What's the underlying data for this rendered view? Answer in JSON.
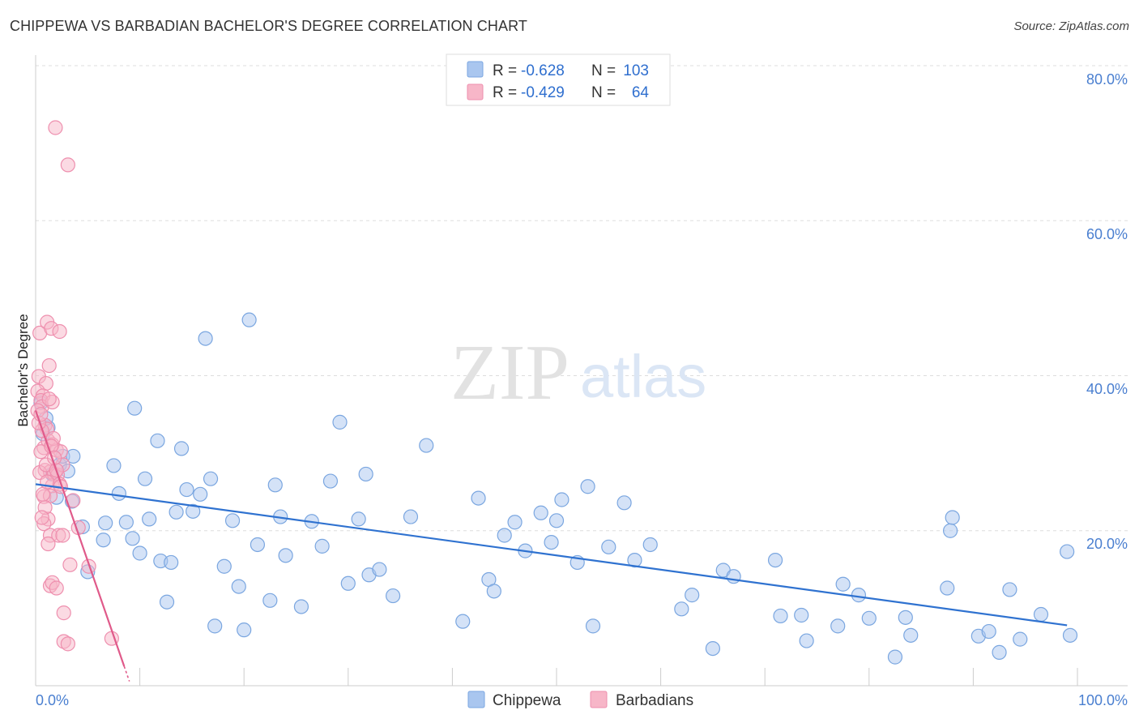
{
  "title": "CHIPPEWA VS BARBADIAN BACHELOR'S DEGREE CORRELATION CHART",
  "source": "Source: ZipAtlas.com",
  "watermark": {
    "zip": "ZIP",
    "atlas": "atlas"
  },
  "colors": {
    "chippewa_fill": "#a9c6ef",
    "chippewa_stroke": "#7aa6e0",
    "chippewa_line": "#2f72d0",
    "barbadian_fill": "#f7b6c8",
    "barbadian_stroke": "#ee8fae",
    "barbadian_line": "#e05a8a",
    "value_blue": "#2f6fcf",
    "grid": "#dddddd"
  },
  "stats": [
    {
      "series": "Chippewa",
      "r_label": "R =",
      "r": "-0.628",
      "n_label": "N =",
      "n": "103"
    },
    {
      "series": "Barbadians",
      "r_label": "R =",
      "r": "-0.429",
      "n_label": "N =",
      "n": "64"
    }
  ],
  "chart_data": {
    "type": "scatter",
    "title": "CHIPPEWA VS BARBADIAN BACHELOR'S DEGREE CORRELATION CHART",
    "xlabel": "",
    "ylabel": "Bachelor's Degree",
    "xlim": [
      0,
      100
    ],
    "ylim": [
      0,
      80
    ],
    "x_tick_labels": [
      "0.0%",
      "100.0%"
    ],
    "y_ticks": [
      20,
      40,
      60,
      80
    ],
    "y_tick_labels": [
      "20.0%",
      "40.0%",
      "60.0%",
      "80.0%"
    ],
    "grid": true,
    "legend": [
      "Chippewa",
      "Barbadians"
    ],
    "series": [
      {
        "name": "Chippewa",
        "trend": {
          "x": [
            0,
            99
          ],
          "y": [
            26.0,
            7.8
          ]
        },
        "points": [
          [
            0.5,
            36.5
          ],
          [
            0.7,
            32.5
          ],
          [
            1.2,
            33.3
          ],
          [
            1.6,
            27.3
          ],
          [
            2.0,
            24.3
          ],
          [
            2.3,
            28.5
          ],
          [
            2.6,
            29.6
          ],
          [
            3.1,
            27.7
          ],
          [
            3.6,
            29.6
          ],
          [
            4.5,
            20.5
          ],
          [
            5.0,
            14.7
          ],
          [
            6.5,
            18.8
          ],
          [
            6.7,
            21.0
          ],
          [
            7.5,
            28.4
          ],
          [
            8.0,
            24.8
          ],
          [
            8.7,
            21.1
          ],
          [
            9.3,
            19.0
          ],
          [
            9.5,
            35.8
          ],
          [
            10.0,
            17.1
          ],
          [
            10.5,
            26.7
          ],
          [
            10.9,
            21.5
          ],
          [
            11.7,
            31.6
          ],
          [
            12.0,
            16.1
          ],
          [
            12.6,
            10.8
          ],
          [
            13.0,
            15.9
          ],
          [
            13.5,
            22.4
          ],
          [
            14.0,
            30.6
          ],
          [
            14.5,
            25.3
          ],
          [
            15.1,
            22.5
          ],
          [
            15.8,
            24.7
          ],
          [
            16.3,
            44.8
          ],
          [
            16.8,
            26.7
          ],
          [
            17.2,
            7.7
          ],
          [
            18.1,
            15.4
          ],
          [
            18.9,
            21.3
          ],
          [
            19.5,
            12.8
          ],
          [
            20.0,
            7.2
          ],
          [
            20.5,
            47.2
          ],
          [
            21.3,
            18.2
          ],
          [
            22.5,
            11.0
          ],
          [
            23.0,
            25.9
          ],
          [
            23.5,
            21.8
          ],
          [
            24.0,
            16.8
          ],
          [
            25.5,
            10.2
          ],
          [
            26.5,
            21.2
          ],
          [
            27.5,
            18.0
          ],
          [
            28.3,
            26.4
          ],
          [
            29.2,
            34.0
          ],
          [
            30.0,
            13.2
          ],
          [
            31.0,
            21.5
          ],
          [
            31.7,
            27.3
          ],
          [
            32.0,
            14.3
          ],
          [
            33.0,
            15.0
          ],
          [
            34.3,
            11.6
          ],
          [
            36.0,
            21.8
          ],
          [
            37.5,
            31.0
          ],
          [
            41.0,
            8.3
          ],
          [
            42.5,
            24.2
          ],
          [
            43.5,
            13.7
          ],
          [
            44.0,
            12.2
          ],
          [
            45.0,
            19.4
          ],
          [
            46.0,
            21.1
          ],
          [
            47.0,
            17.4
          ],
          [
            48.5,
            22.3
          ],
          [
            49.5,
            18.5
          ],
          [
            50.0,
            21.3
          ],
          [
            50.5,
            24.0
          ],
          [
            52.0,
            15.9
          ],
          [
            53.0,
            25.7
          ],
          [
            53.5,
            7.7
          ],
          [
            55.0,
            17.9
          ],
          [
            56.5,
            23.6
          ],
          [
            57.5,
            16.2
          ],
          [
            59.0,
            18.2
          ],
          [
            62.0,
            9.9
          ],
          [
            63.0,
            11.7
          ],
          [
            65.0,
            4.8
          ],
          [
            66.0,
            14.9
          ],
          [
            67.0,
            14.1
          ],
          [
            71.0,
            16.2
          ],
          [
            71.5,
            9.0
          ],
          [
            73.5,
            9.1
          ],
          [
            74.0,
            5.8
          ],
          [
            77.0,
            7.7
          ],
          [
            77.5,
            13.1
          ],
          [
            79.0,
            11.7
          ],
          [
            80.0,
            8.7
          ],
          [
            82.5,
            3.7
          ],
          [
            83.5,
            8.8
          ],
          [
            84.0,
            6.5
          ],
          [
            87.5,
            12.6
          ],
          [
            87.8,
            20.0
          ],
          [
            88.0,
            21.7
          ],
          [
            90.5,
            6.4
          ],
          [
            91.5,
            7.0
          ],
          [
            92.5,
            4.3
          ],
          [
            93.5,
            12.4
          ],
          [
            94.5,
            6.0
          ],
          [
            96.5,
            9.2
          ],
          [
            99.0,
            17.3
          ],
          [
            99.3,
            6.5
          ],
          [
            3.5,
            23.8
          ],
          [
            1.0,
            34.5
          ]
        ]
      },
      {
        "name": "Barbadians",
        "trend": {
          "x": [
            0,
            8.5
          ],
          "y": [
            35.5,
            2.5
          ]
        },
        "points": [
          [
            1.9,
            72.0
          ],
          [
            3.1,
            67.2
          ],
          [
            0.4,
            45.5
          ],
          [
            1.1,
            46.9
          ],
          [
            1.5,
            46.1
          ],
          [
            2.3,
            45.7
          ],
          [
            1.3,
            41.3
          ],
          [
            0.3,
            39.9
          ],
          [
            1.0,
            39.0
          ],
          [
            0.2,
            38.0
          ],
          [
            0.7,
            37.4
          ],
          [
            0.5,
            36.8
          ],
          [
            0.6,
            36.0
          ],
          [
            1.6,
            36.6
          ],
          [
            0.2,
            35.5
          ],
          [
            0.9,
            33.6
          ],
          [
            1.1,
            33.1
          ],
          [
            0.8,
            30.7
          ],
          [
            1.2,
            31.6
          ],
          [
            1.6,
            31.1
          ],
          [
            0.5,
            30.2
          ],
          [
            2.0,
            30.4
          ],
          [
            2.4,
            30.2
          ],
          [
            0.9,
            27.8
          ],
          [
            1.4,
            27.6
          ],
          [
            1.8,
            27.3
          ],
          [
            2.1,
            27.2
          ],
          [
            0.4,
            27.5
          ],
          [
            1.6,
            25.8
          ],
          [
            2.3,
            26.0
          ],
          [
            0.8,
            24.4
          ],
          [
            1.4,
            24.5
          ],
          [
            1.2,
            21.5
          ],
          [
            0.8,
            20.9
          ],
          [
            1.4,
            19.4
          ],
          [
            2.2,
            19.4
          ],
          [
            2.6,
            19.4
          ],
          [
            4.1,
            20.4
          ],
          [
            3.3,
            15.6
          ],
          [
            5.1,
            15.4
          ],
          [
            1.4,
            12.9
          ],
          [
            1.6,
            13.3
          ],
          [
            2.0,
            12.6
          ],
          [
            2.7,
            9.4
          ],
          [
            2.7,
            5.7
          ],
          [
            3.1,
            5.4
          ],
          [
            7.3,
            6.1
          ],
          [
            0.6,
            32.9
          ],
          [
            1.0,
            28.5
          ],
          [
            2.6,
            28.5
          ],
          [
            1.3,
            37.0
          ],
          [
            0.9,
            23.0
          ],
          [
            1.7,
            31.9
          ],
          [
            2.0,
            27.8
          ],
          [
            0.3,
            33.9
          ],
          [
            1.5,
            30.9
          ],
          [
            2.4,
            25.7
          ],
          [
            0.7,
            24.7
          ],
          [
            3.6,
            23.9
          ],
          [
            1.1,
            26.3
          ],
          [
            0.5,
            35.0
          ],
          [
            1.8,
            29.4
          ],
          [
            0.6,
            21.7
          ],
          [
            1.2,
            18.3
          ]
        ]
      }
    ]
  }
}
